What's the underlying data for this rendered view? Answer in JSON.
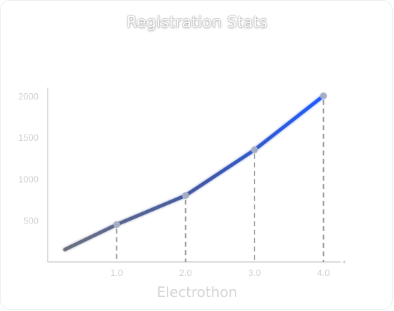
{
  "chart_data": {
    "type": "line",
    "title": "Registration Stats",
    "xlabel": "Electrothon",
    "ylabel": "",
    "x": [
      0.25,
      1.0,
      2.0,
      3.0,
      4.0
    ],
    "x_ticks": [
      "1.0",
      "2.0",
      "3.0",
      "4.0"
    ],
    "x_tick_values": [
      1.0,
      2.0,
      3.0,
      4.0
    ],
    "y_ticks": [
      "500",
      "1000",
      "1500",
      "2000"
    ],
    "y_tick_values": [
      500,
      1000,
      1500,
      2000
    ],
    "xlim": [
      0,
      4.25
    ],
    "ylim": [
      0,
      2100
    ],
    "series": [
      {
        "values": [
          150,
          450,
          800,
          1350,
          2000
        ],
        "marker_indices": [
          1,
          2,
          3,
          4
        ]
      }
    ],
    "grid": false,
    "drop_lines": true,
    "colors": {
      "line_start": "#6b6f80",
      "line_end": "#1f5cff",
      "marker": "#a9b0c4",
      "axis": "#cfcfcf",
      "drop_line": "#9a9a9a"
    }
  }
}
